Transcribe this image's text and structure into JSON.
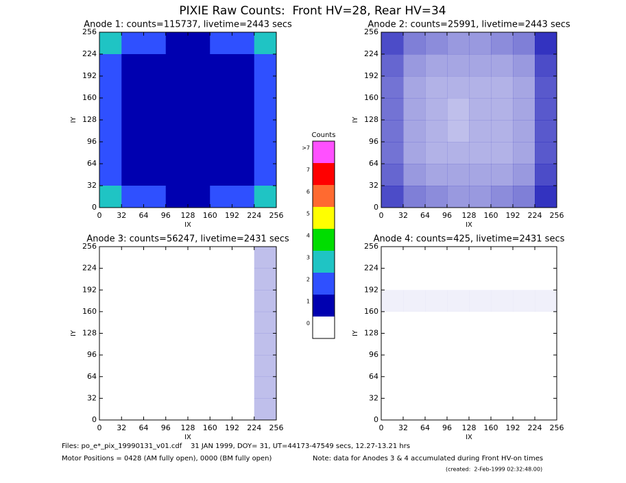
{
  "title": "PIXIE Raw Counts:  Front HV=28, Rear HV=34",
  "chart_data": [
    {
      "type": "heatmap",
      "title": "Anode 1: counts=115737, livetime=2443 secs",
      "xlabel": "IX",
      "ylabel": "IY",
      "xlim": [
        0,
        256
      ],
      "ylim": [
        0,
        256
      ],
      "xticks": [
        0,
        32,
        64,
        96,
        128,
        160,
        192,
        224,
        256
      ],
      "yticks": [
        0,
        32,
        64,
        96,
        128,
        160,
        192,
        224,
        256
      ],
      "z": [
        [
          3.0,
          2.2,
          2.0,
          1.9,
          1.9,
          2.0,
          2.2,
          3.0
        ],
        [
          2.6,
          1.9,
          1.7,
          1.6,
          1.6,
          1.7,
          1.9,
          2.6
        ],
        [
          2.4,
          1.8,
          1.6,
          1.5,
          1.5,
          1.6,
          1.8,
          2.4
        ],
        [
          2.4,
          1.8,
          1.6,
          1.4,
          1.5,
          1.6,
          1.8,
          2.4
        ],
        [
          2.4,
          1.8,
          1.6,
          1.4,
          1.5,
          1.6,
          1.8,
          2.4
        ],
        [
          2.4,
          1.8,
          1.6,
          1.5,
          1.5,
          1.6,
          1.8,
          2.4
        ],
        [
          2.6,
          1.9,
          1.7,
          1.6,
          1.6,
          1.7,
          1.9,
          2.6
        ],
        [
          3.0,
          2.2,
          2.0,
          1.9,
          1.9,
          2.0,
          2.2,
          3.0
        ]
      ]
    },
    {
      "type": "heatmap",
      "title": "Anode 2: counts=25991, livetime=2443 secs",
      "xlabel": "IX",
      "ylabel": "IY",
      "xlim": [
        0,
        256
      ],
      "ylim": [
        0,
        256
      ],
      "xticks": [
        0,
        32,
        64,
        96,
        128,
        160,
        192,
        224,
        256
      ],
      "yticks": [
        0,
        32,
        64,
        96,
        128,
        160,
        192,
        224,
        256
      ],
      "z": [
        [
          0.7,
          0.5,
          0.45,
          0.4,
          0.4,
          0.45,
          0.5,
          0.8
        ],
        [
          0.6,
          0.4,
          0.35,
          0.35,
          0.35,
          0.35,
          0.4,
          0.7
        ],
        [
          0.55,
          0.35,
          0.3,
          0.3,
          0.3,
          0.3,
          0.35,
          0.65
        ],
        [
          0.55,
          0.35,
          0.3,
          0.25,
          0.3,
          0.3,
          0.35,
          0.65
        ],
        [
          0.55,
          0.35,
          0.3,
          0.25,
          0.3,
          0.3,
          0.35,
          0.65
        ],
        [
          0.55,
          0.35,
          0.3,
          0.3,
          0.3,
          0.3,
          0.35,
          0.65
        ],
        [
          0.6,
          0.4,
          0.35,
          0.35,
          0.35,
          0.35,
          0.4,
          0.7
        ],
        [
          0.7,
          0.5,
          0.45,
          0.4,
          0.4,
          0.45,
          0.5,
          0.8
        ]
      ]
    },
    {
      "type": "heatmap",
      "title": "Anode 3: counts=56247, livetime=2431 secs",
      "xlabel": "IX",
      "ylabel": "IY",
      "xlim": [
        0,
        256
      ],
      "ylim": [
        0,
        256
      ],
      "xticks": [
        0,
        32,
        64,
        96,
        128,
        160,
        192,
        224,
        256
      ],
      "yticks": [
        0,
        32,
        64,
        96,
        128,
        160,
        192,
        224,
        256
      ],
      "z": [
        [
          0,
          0,
          0,
          0,
          0,
          0,
          0,
          0.25
        ],
        [
          0,
          0,
          0,
          0,
          0,
          0,
          0,
          0.25
        ],
        [
          0,
          0,
          0,
          0,
          0,
          0,
          0,
          0.25
        ],
        [
          0,
          0,
          0,
          0,
          0,
          0,
          0,
          0.25
        ],
        [
          0,
          0,
          0,
          0,
          0,
          0,
          0,
          0.25
        ],
        [
          0,
          0,
          0,
          0,
          0,
          0,
          0,
          0.25
        ],
        [
          0,
          0,
          0,
          0,
          0,
          0,
          0,
          0.25
        ],
        [
          0,
          0,
          0,
          0,
          0,
          0,
          0,
          0.25
        ]
      ]
    },
    {
      "type": "heatmap",
      "title": "Anode 4: counts=425, livetime=2431 secs",
      "xlabel": "IX",
      "ylabel": "IY",
      "xlim": [
        0,
        256
      ],
      "ylim": [
        0,
        256
      ],
      "xticks": [
        0,
        32,
        64,
        96,
        128,
        160,
        192,
        224,
        256
      ],
      "yticks": [
        0,
        32,
        64,
        96,
        128,
        160,
        192,
        224,
        256
      ],
      "z": [
        [
          0,
          0,
          0,
          0,
          0,
          0,
          0,
          0
        ],
        [
          0,
          0,
          0,
          0,
          0,
          0,
          0,
          0
        ],
        [
          0.06,
          0.06,
          0.06,
          0.06,
          0.06,
          0.06,
          0.06,
          0.06
        ],
        [
          0,
          0,
          0,
          0,
          0,
          0,
          0,
          0
        ],
        [
          0,
          0,
          0,
          0,
          0,
          0,
          0,
          0
        ],
        [
          0,
          0,
          0,
          0,
          0,
          0,
          0,
          0
        ],
        [
          0,
          0,
          0,
          0,
          0,
          0,
          0,
          0
        ],
        [
          0,
          0,
          0,
          0,
          0,
          0,
          0,
          0
        ]
      ]
    }
  ],
  "colorbar": {
    "title": "Counts",
    "labels": [
      "0",
      "1",
      "2",
      "3",
      "4",
      "5",
      "6",
      "7",
      ">7"
    ],
    "colors": [
      "#ffffff",
      "#0000b0",
      "#2f50ff",
      "#1fc4c4",
      "#00dd00",
      "#ffff00",
      "#ff6a30",
      "#ff0000",
      "#ff50ff"
    ]
  },
  "footer": {
    "files": "Files: po_e*_pix_19990131_v01.cdf    31 JAN 1999, DOY= 31, UT=44173-47549 secs, 12.27-13.21 hrs",
    "motor": "Motor Positions = 0428 (AM fully open), 0000 (BM fully open)",
    "note": "Note: data for Anodes 3 & 4 accumulated during Front HV-on times",
    "created": "(created:  2-Feb-1999 02:32:48.00)"
  }
}
